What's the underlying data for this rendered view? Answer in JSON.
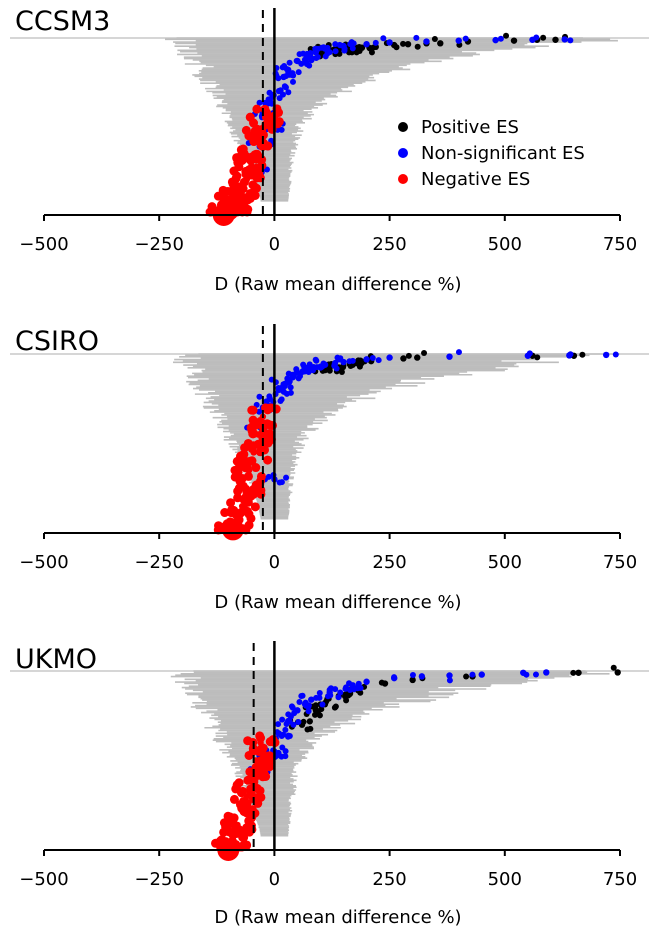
{
  "colors": {
    "positive": "#000000",
    "nonsignificant": "#0000ff",
    "negative": "#ff0000",
    "ci_bar": "#bdbdbd"
  },
  "chart_data": [
    {
      "type": "scatter",
      "title": "CCSM3",
      "xlabel": "D (Raw mean difference %)",
      "xlim": [
        -500,
        750
      ],
      "xticks": [
        -500,
        -250,
        0,
        250,
        500,
        750
      ],
      "xtick_labels": [
        "−500",
        "−250",
        "0",
        "250",
        "500",
        "750"
      ],
      "mean_line_x": -25,
      "legend": {
        "placement": "right",
        "entries": [
          "Positive ES",
          "Non-significant ES",
          "Negative ES"
        ]
      },
      "series": [
        {
          "name": "Positive ES",
          "group": "positive",
          "x": [
            100,
            120,
            140,
            165,
            190,
            220,
            260,
            290,
            330,
            360,
            420,
            520,
            570,
            610
          ],
          "rank": [
            0.08,
            0.07,
            0.065,
            0.06,
            0.055,
            0.05,
            0.04,
            0.035,
            0.03,
            0.03,
            0.02,
            0.015,
            0.01,
            0.01
          ]
        },
        {
          "name": "Non-significant ES",
          "group": "nonsignificant",
          "x": [
            -40,
            -30,
            -20,
            -10,
            0,
            10,
            20,
            30,
            50,
            70,
            90,
            110,
            150,
            200,
            250,
            330,
            400,
            480,
            560,
            630
          ],
          "rank": [
            0.75,
            0.6,
            0.45,
            0.35,
            0.5,
            0.3,
            0.22,
            0.18,
            0.13,
            0.1,
            0.08,
            0.06,
            0.045,
            0.035,
            0.025,
            0.02,
            0.015,
            0.012,
            0.01,
            0.008
          ]
        },
        {
          "name": "Negative ES",
          "group": "negative",
          "x": [
            -20,
            -30,
            -40,
            -50,
            -60,
            -70,
            -80,
            -90,
            -100,
            -110
          ],
          "rank": [
            0.45,
            0.55,
            0.65,
            0.72,
            0.8,
            0.86,
            0.9,
            0.94,
            0.97,
            1.0
          ]
        }
      ]
    },
    {
      "type": "scatter",
      "title": "CSIRO",
      "xlabel": "D (Raw mean difference %)",
      "xlim": [
        -500,
        750
      ],
      "xticks": [
        -500,
        -250,
        0,
        250,
        500,
        750
      ],
      "xtick_labels": [
        "−500",
        "−250",
        "0",
        "250",
        "500",
        "750"
      ],
      "mean_line_x": -25,
      "series": [
        {
          "name": "Positive ES",
          "group": "positive",
          "x": [
            110,
            140,
            170,
            210,
            280,
            310,
            560,
            650
          ],
          "rank": [
            0.09,
            0.075,
            0.06,
            0.04,
            0.025,
            0.02,
            0.01,
            0.01
          ]
        },
        {
          "name": "Non-significant ES",
          "group": "nonsignificant",
          "x": [
            -40,
            -25,
            -10,
            0,
            10,
            20,
            40,
            60,
            80,
            110,
            150,
            200,
            250,
            380,
            550,
            640,
            720
          ],
          "rank": [
            0.4,
            0.3,
            0.25,
            0.7,
            0.2,
            0.17,
            0.13,
            0.1,
            0.08,
            0.06,
            0.045,
            0.03,
            0.02,
            0.015,
            0.01,
            0.008,
            0.005
          ]
        },
        {
          "name": "Negative ES",
          "group": "negative",
          "x": [
            -25,
            -35,
            -45,
            -55,
            -60,
            -70,
            -80,
            -90
          ],
          "rank": [
            0.35,
            0.45,
            0.55,
            0.65,
            0.75,
            0.85,
            0.92,
            0.98
          ]
        }
      ]
    },
    {
      "type": "scatter",
      "title": "UKMO",
      "xlabel": "D (Raw mean difference %)",
      "xlim": [
        -500,
        750
      ],
      "xticks": [
        -500,
        -250,
        0,
        250,
        500,
        750
      ],
      "xtick_labels": [
        "−500",
        "−250",
        "0",
        "250",
        "500",
        "750"
      ],
      "mean_line_x": -45,
      "series": [
        {
          "name": "Positive ES",
          "group": "positive",
          "x": [
            60,
            90,
            110,
            140,
            180,
            240,
            300,
            430,
            660,
            745
          ],
          "rank": [
            0.3,
            0.22,
            0.18,
            0.14,
            0.1,
            0.07,
            0.05,
            0.03,
            0.01,
            0.008
          ]
        },
        {
          "name": "Non-significant ES",
          "group": "nonsignificant",
          "x": [
            -30,
            -10,
            0,
            10,
            30,
            50,
            80,
            120,
            170,
            200,
            260,
            320,
            380,
            450,
            540,
            590
          ],
          "rank": [
            0.55,
            0.5,
            0.45,
            0.35,
            0.28,
            0.22,
            0.16,
            0.12,
            0.08,
            0.06,
            0.04,
            0.03,
            0.025,
            0.02,
            0.01,
            0.008
          ]
        },
        {
          "name": "Negative ES",
          "group": "negative",
          "x": [
            -30,
            -40,
            -50,
            -60,
            -70,
            -80,
            -90,
            -100
          ],
          "rank": [
            0.4,
            0.5,
            0.6,
            0.7,
            0.78,
            0.86,
            0.93,
            1.0
          ]
        }
      ]
    }
  ]
}
